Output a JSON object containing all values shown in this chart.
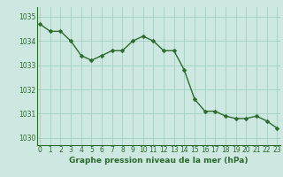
{
  "x": [
    0,
    1,
    2,
    3,
    4,
    5,
    6,
    7,
    8,
    9,
    10,
    11,
    12,
    13,
    14,
    15,
    16,
    17,
    18,
    19,
    20,
    21,
    22,
    23
  ],
  "y": [
    1034.7,
    1034.4,
    1034.4,
    1034.0,
    1033.4,
    1033.2,
    1033.4,
    1033.6,
    1033.6,
    1034.0,
    1034.2,
    1034.0,
    1033.6,
    1033.6,
    1032.8,
    1031.6,
    1031.1,
    1031.1,
    1030.9,
    1030.8,
    1030.8,
    1030.9,
    1030.7,
    1030.4
  ],
  "line_color": "#2d6a2d",
  "marker_color": "#2d6a2d",
  "bg_color": "#cce8e0",
  "grid_color": "#99ccbb",
  "xlabel": "Graphe pression niveau de la mer (hPa)",
  "xlabel_color": "#2d6a2d",
  "tick_label_color": "#2d6a2d",
  "ylim": [
    1029.7,
    1035.4
  ],
  "yticks": [
    1030,
    1031,
    1032,
    1033,
    1034,
    1035
  ],
  "xticks": [
    0,
    1,
    2,
    3,
    4,
    5,
    6,
    7,
    8,
    9,
    10,
    11,
    12,
    13,
    14,
    15,
    16,
    17,
    18,
    19,
    20,
    21,
    22,
    23
  ],
  "line_width": 1.0,
  "marker_size": 2.5,
  "tick_fontsize": 5.5,
  "xlabel_fontsize": 6.5
}
